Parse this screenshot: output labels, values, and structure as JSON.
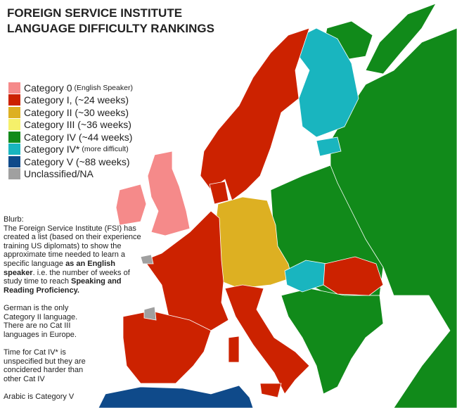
{
  "title": [
    "FOREIGN SERVICE INSTITUTE",
    "LANGUAGE DIFFICULTY RANKINGS"
  ],
  "legend": [
    {
      "label": "Category 0",
      "note": "(English Speaker)",
      "color": "#f58a8a"
    },
    {
      "label": "Category I, (~24 weeks)",
      "note": "",
      "color": "#cc2200"
    },
    {
      "label": "Category II (~30 weeks)",
      "note": "",
      "color": "#ddb022"
    },
    {
      "label": "Category III (~36 weeks)",
      "note": "",
      "color": "#f5f06a"
    },
    {
      "label": "Category IV (~44 weeks)",
      "note": "",
      "color": "#118a1a"
    },
    {
      "label": "Category IV*",
      "note": "(more difficult)",
      "color": "#19b5bf"
    },
    {
      "label": "Category V (~88 weeks)",
      "note": "",
      "color": "#0f4a8a"
    },
    {
      "label": "Unclassified/NA",
      "note": "",
      "color": "#a0a0a0"
    }
  ],
  "blurb": {
    "heading": "Blurb:",
    "p1a": "The Foreign Service Institute (FSI) has created a list (based on their experience training US diplomats) to show the approximate time needed to learn a specific language ",
    "p1b": "as an English speaker",
    "p1c": ". i.e. the number of weeks of study time to reach ",
    "p1d": "Speaking and Reading Proficiency.",
    "p2": "German is the only Category II language. There are no Cat III languages in Europe.",
    "p3": "Time for Cat IV* is unspecified but they are concidered harder than other Cat IV",
    "p4": "Arabic is Category V"
  }
}
